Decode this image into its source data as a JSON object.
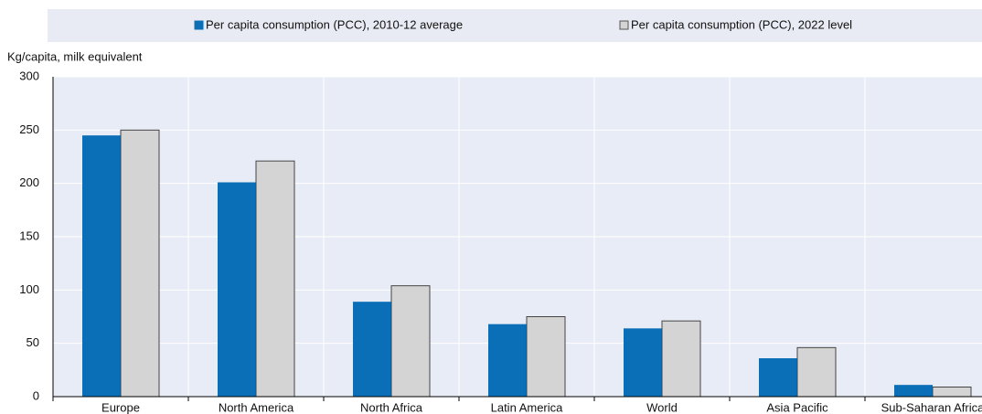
{
  "chart_data": {
    "type": "bar",
    "y_label": "Kg/capita, milk equivalent",
    "categories": [
      "Europe",
      "North America",
      "North Africa",
      "Latin America",
      "World",
      "Asia Pacific",
      "Sub-Saharan Africa"
    ],
    "series": [
      {
        "name": "Per capita consumption (PCC), 2010-12 average",
        "color": "#0b6fb8",
        "values": [
          245,
          201,
          89,
          68,
          64,
          36,
          11
        ]
      },
      {
        "name": "Per capita consumption (PCC), 2022 level",
        "color": "#d4d4d4",
        "values": [
          250,
          221,
          104,
          75,
          71,
          46,
          9
        ]
      }
    ],
    "ylim": [
      0,
      300
    ],
    "yticks": [
      0,
      50,
      100,
      150,
      200,
      250,
      300
    ],
    "grid": true,
    "legend": "top"
  }
}
